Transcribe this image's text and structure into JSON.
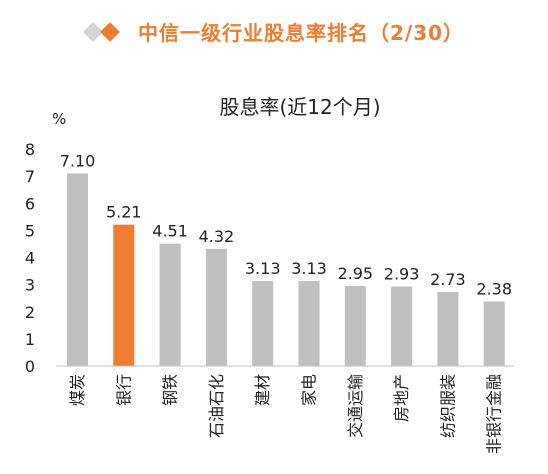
{
  "header": {
    "title": "中信一级行业股息率排名（2/30）",
    "accent_color": "#ed7d31",
    "gray_color": "#d3d3d3"
  },
  "chart_data": {
    "type": "bar",
    "title": "股息率(近12个月)",
    "ylabel": "%",
    "xlabel": "",
    "ylim": [
      0,
      8
    ],
    "yticks": [
      0,
      1,
      2,
      3,
      4,
      5,
      6,
      7,
      8
    ],
    "grid": false,
    "categories": [
      "煤炭",
      "银行",
      "钢铁",
      "石油石化",
      "建材",
      "家电",
      "交通运输",
      "房地产",
      "纺织服装",
      "非银行金融"
    ],
    "values": [
      7.1,
      5.21,
      4.51,
      4.32,
      3.13,
      3.13,
      2.95,
      2.93,
      2.73,
      2.38
    ],
    "data_labels": [
      "7.10",
      "5.21",
      "4.51",
      "4.32",
      "3.13",
      "3.13",
      "2.95",
      "2.93",
      "2.73",
      "2.38"
    ],
    "highlight_index": 1,
    "bar_color": "#bfbfbf",
    "highlight_color": "#ed7d31"
  }
}
